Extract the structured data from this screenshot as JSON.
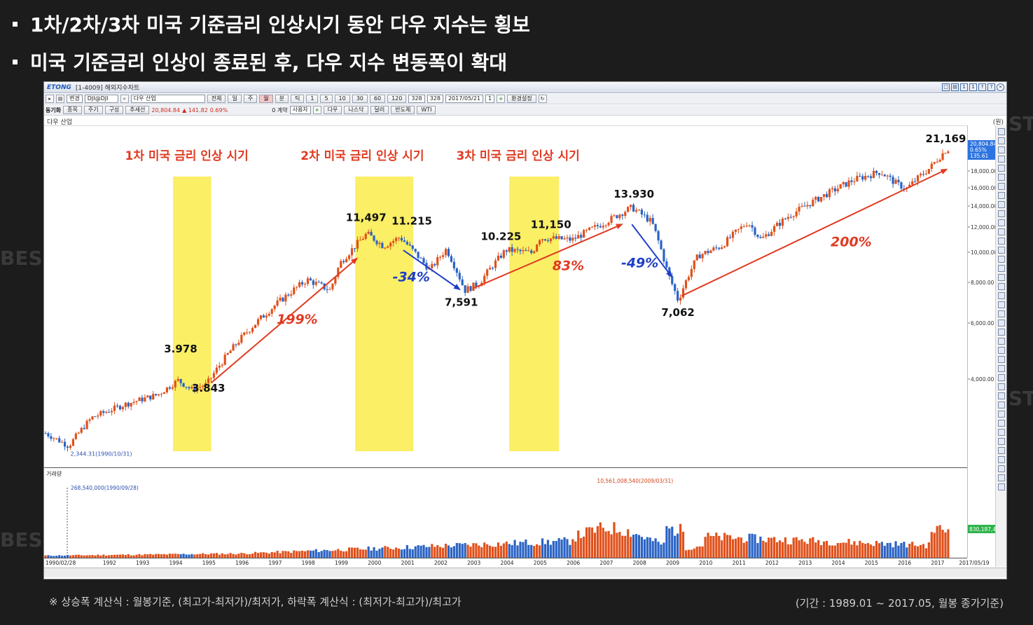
{
  "bullets": [
    "1차/2차/3차 미국 기준금리 인상시기 동안 다우 지수는 횡보",
    "미국 기준금리 인상이 종료된 후, 다우 지수 변동폭이 확대"
  ],
  "window": {
    "logo": "ETONG",
    "title": "[1-4009] 해외지수차트",
    "title_buttons": [
      "□",
      "▤",
      "1",
      "1",
      "?",
      "?",
      "×"
    ]
  },
  "toolbar1": {
    "view_label": "변경",
    "code": "DJI@DJI",
    "name": "다우 산업",
    "periods": [
      "전체",
      "일",
      "주",
      "월",
      "분",
      "틱"
    ],
    "selected_period": "월",
    "min_buttons": [
      "1",
      "5",
      "10",
      "30",
      "60",
      "120"
    ],
    "count1": "328",
    "count2": "328",
    "date": "2017/05/21",
    "unit": "1",
    "settings": "환경설정"
  },
  "toolbar2": {
    "sync": "동기화",
    "stock": "종목",
    "cycle": "주기",
    "compose": "구성",
    "trend": "추세선",
    "price": "20,804.84",
    "change": "▲ 141.82",
    "rate": "0.69%",
    "contract_label": "0 계약",
    "user": "사용자",
    "indices": [
      "다우",
      "나스닥",
      "달러",
      "반도체",
      "WTI"
    ]
  },
  "chart_data": {
    "type": "candlestick",
    "title": "다우 산업",
    "unit_label": "(원)",
    "y_ticks": [
      "18,000.00",
      "16,000.00",
      "14,000.00",
      "12,000.00",
      "10,000.00",
      "8,000.00",
      "6,000.00",
      "4,000.00"
    ],
    "x_ticks": [
      "1990/02/28",
      "1992",
      "1993",
      "1994",
      "1995",
      "1996",
      "1997",
      "1998",
      "1999",
      "2000",
      "2001",
      "2002",
      "2003",
      "2004",
      "2005",
      "2006",
      "2007",
      "2008",
      "2009",
      "2010",
      "2011",
      "2012",
      "2013",
      "2014",
      "2015",
      "2016",
      "2017",
      "2017/05/19"
    ],
    "rate_hike_periods": [
      "1차 미국 금리 인상 시기",
      "2차 미국 금리 인상 시기",
      "3차 미국 금리 인상 시기"
    ],
    "key_points": [
      {
        "label": "3.978",
        "year": 1994.1
      },
      {
        "label": "3.843",
        "year": 1994.9
      },
      {
        "label": "11,497",
        "year": 1999.8
      },
      {
        "label": "11.215",
        "year": 2000.8
      },
      {
        "label": "7,591",
        "year": 2002.7
      },
      {
        "label": "10.225",
        "year": 2004.0
      },
      {
        "label": "11,150",
        "year": 2005.0
      },
      {
        "label": "13.930",
        "year": 2007.8
      },
      {
        "label": "7,062",
        "year": 2009.2
      },
      {
        "label": "21,169",
        "year": 2017.3
      }
    ],
    "moves": [
      {
        "label": "199%",
        "direction": "up",
        "from": "1995",
        "to": "1999.5"
      },
      {
        "label": "-34%",
        "direction": "down",
        "from": "2000.8",
        "to": "2002.7"
      },
      {
        "label": "83%",
        "direction": "up",
        "from": "2003",
        "to": "2007.5"
      },
      {
        "label": "-49%",
        "direction": "down",
        "from": "2007.8",
        "to": "2009.2"
      },
      {
        "label": "200%",
        "direction": "up",
        "from": "2009.5",
        "to": "2017.3"
      }
    ],
    "low_annotation": "2,344.31(1990/10/31)",
    "current_box": [
      "20,804.84",
      "0.65%",
      "135.61"
    ],
    "volume_title": "거래량",
    "volume_low_annotation": "268,540,000(1990/09/28)",
    "volume_high_annotation": "10,561,008,540(2009/03/31)",
    "volume_current": "830,187,4"
  },
  "footer": {
    "formula": "※ 상승폭 계산식 : 월봉기준, (최고가-최저가)/최저가, 하락폭 계산식 : (최저가-최고가)/최고가",
    "period": "(기간 : 1989.01 ~ 2017.05, 월봉 종가기준)"
  },
  "colors": {
    "up": "#e0511c",
    "down": "#2a63c4",
    "highlight": "#f9ec4a",
    "annotation_red": "#e03b22",
    "annotation_blue": "#1e3ec8"
  }
}
